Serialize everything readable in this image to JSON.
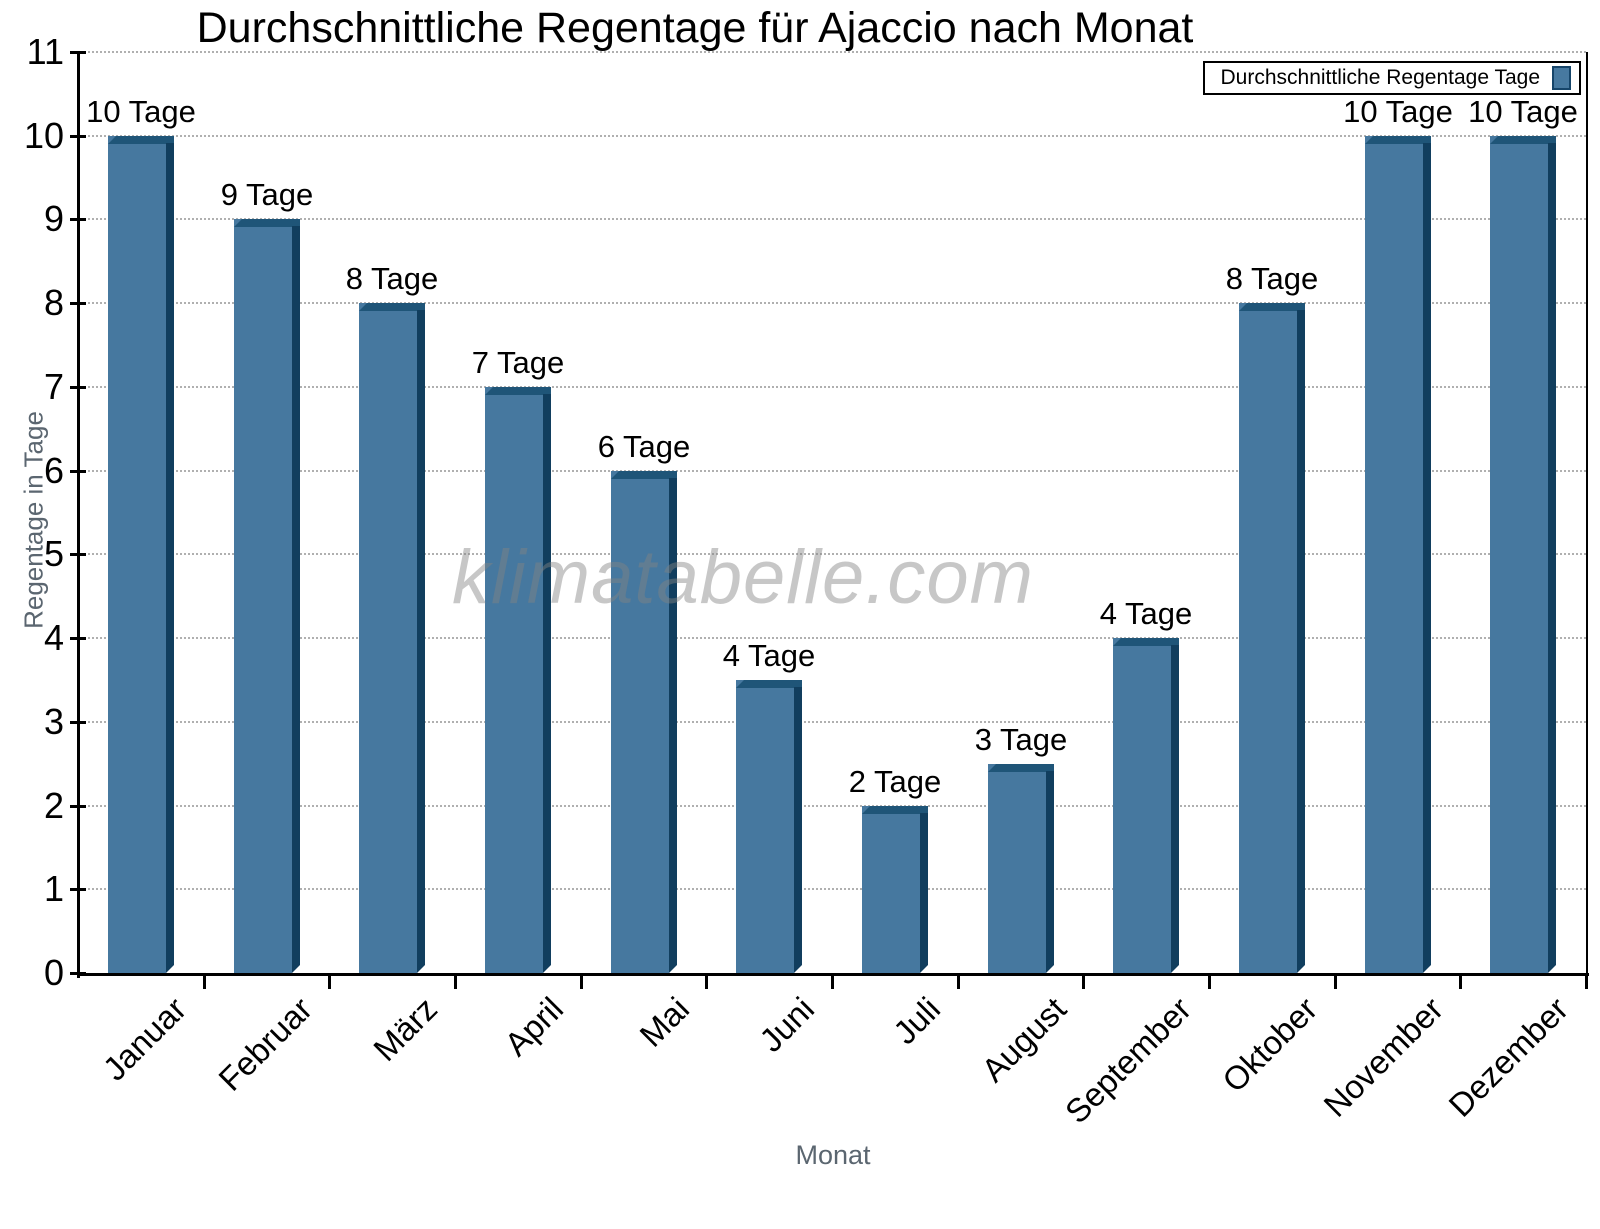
{
  "title": "Durchschnittliche Regentage für Ajaccio nach Monat",
  "watermark": "klimatabelle.com",
  "legend": {
    "label": "Durchschnittliche Regentage Tage"
  },
  "colors": {
    "bar_face": "#46789f",
    "bar_top": "#1f5578",
    "bar_side": "#113e5e",
    "grid": "#b0b0b0",
    "axis": "#000000",
    "axis_title": "#5b6670",
    "watermark_gray": "#828282"
  },
  "chart_data": {
    "type": "bar",
    "title": "Durchschnittliche Regentage für Ajaccio nach Monat",
    "xlabel": "Monat",
    "ylabel": "Regentage in Tage",
    "categories": [
      "Januar",
      "Februar",
      "März",
      "April",
      "Mai",
      "Juni",
      "Juli",
      "August",
      "September",
      "Oktober",
      "November",
      "Dezember"
    ],
    "values": [
      10,
      9,
      8,
      7,
      6,
      3.5,
      2,
      2.5,
      4,
      8,
      10,
      10
    ],
    "bar_labels": [
      "10 Tage",
      "9 Tage",
      "8 Tage",
      "7 Tage",
      "6 Tage",
      "4 Tage",
      "2 Tage",
      "3 Tage",
      "4 Tage",
      "8 Tage",
      "10 Tage",
      "10 Tage"
    ],
    "ylim": [
      0,
      11
    ],
    "yticks": [
      0,
      1,
      2,
      3,
      4,
      5,
      6,
      7,
      8,
      9,
      10,
      11
    ],
    "grid": "horizontal-dotted",
    "legend_position": "top-right",
    "legend_entries": [
      "Durchschnittliche Regentage Tage"
    ]
  }
}
